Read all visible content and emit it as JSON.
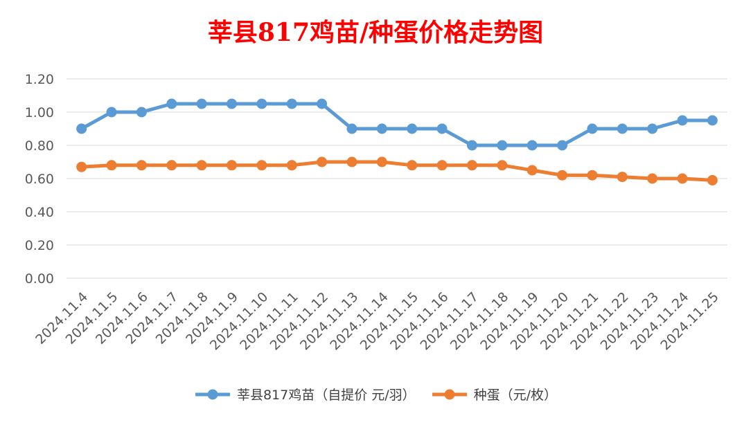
{
  "chart_data": {
    "type": "line",
    "title": "莘县817鸡苗/种蛋价格走势图",
    "categories": [
      "2024.11.4",
      "2024.11.5",
      "2024.11.6",
      "2024.11.7",
      "2024.11.8",
      "2024.11.9",
      "2024.11.10",
      "2024.11.11",
      "2024.11.12",
      "2024.11.13",
      "2024.11.14",
      "2024.11.15",
      "2024.11.16",
      "2024.11.17",
      "2024.11.18",
      "2024.11.19",
      "2024.11.20",
      "2024.11.21",
      "2024.11.22",
      "2024.11.23",
      "2024.11.24",
      "2024.11.25"
    ],
    "series": [
      {
        "name": "莘县817鸡苗（自提价 元/羽）",
        "color": "#5b9bd5",
        "values": [
          0.9,
          1.0,
          1.0,
          1.05,
          1.05,
          1.05,
          1.05,
          1.05,
          1.05,
          0.9,
          0.9,
          0.9,
          0.9,
          0.8,
          0.8,
          0.8,
          0.8,
          0.9,
          0.9,
          0.9,
          0.95,
          0.95
        ]
      },
      {
        "name": "种蛋（元/枚）",
        "color": "#ed7d31",
        "values": [
          0.67,
          0.68,
          0.68,
          0.68,
          0.68,
          0.68,
          0.68,
          0.68,
          0.7,
          0.7,
          0.7,
          0.68,
          0.68,
          0.68,
          0.68,
          0.65,
          0.62,
          0.62,
          0.61,
          0.6,
          0.6,
          0.59
        ]
      }
    ],
    "yticks": [
      "0.00",
      "0.20",
      "0.40",
      "0.60",
      "0.80",
      "1.00",
      "1.20"
    ],
    "ylim": [
      0,
      1.2
    ],
    "grid": true,
    "legend": "bottom"
  }
}
